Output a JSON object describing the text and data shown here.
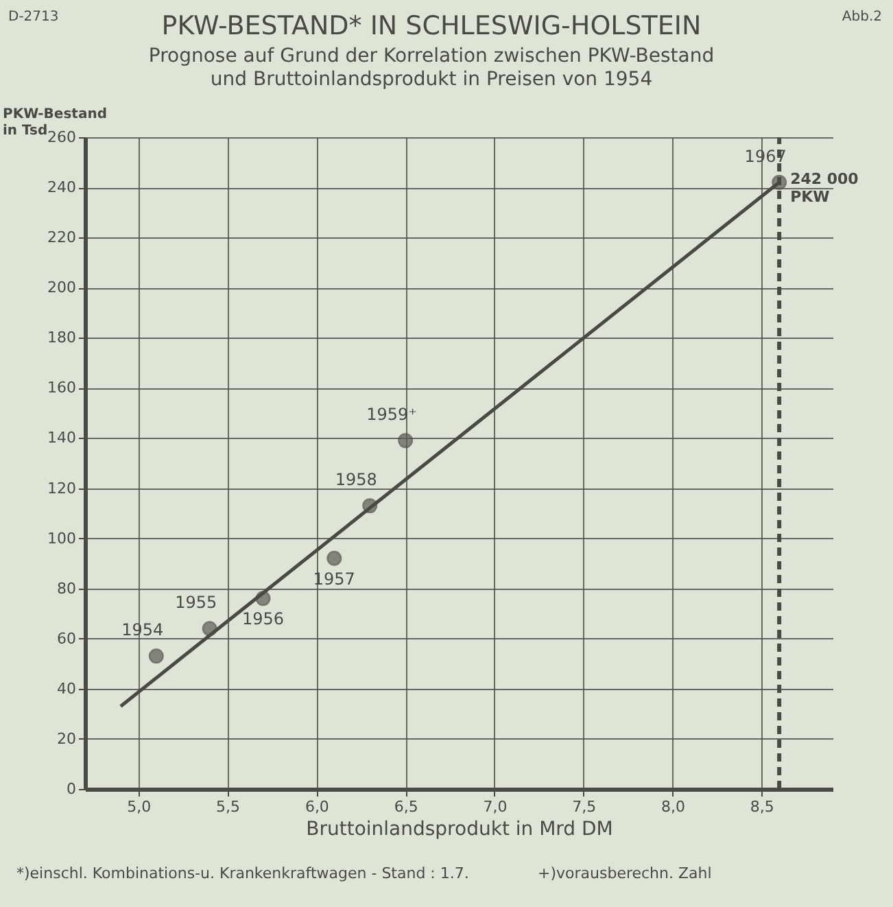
{
  "chart_data": {
    "type": "scatter",
    "title": "PKW-BESTAND* IN SCHLESWIG-HOLSTEIN",
    "subtitle": "Prognose auf Grund der Korrelation zwischen PKW-Bestand und Bruttoinlandsprodukt in Preisen von 1954",
    "xlabel": "Bruttoinlandsprodukt in Mrd DM",
    "ylabel": "PKW-Bestand in Tsd",
    "x": [
      5.1,
      5.4,
      5.7,
      6.1,
      6.3,
      6.5,
      8.6
    ],
    "series": [
      {
        "color": "#5d5d55",
        "values": [
          53,
          64,
          76,
          92,
          113,
          139,
          242
        ]
      },
      {
        "type": "line",
        "color": "#4a4a44",
        "marker": "none",
        "x": [
          4.9,
          8.6
        ],
        "values": [
          33,
          242
        ]
      }
    ],
    "xlim": [
      4.7,
      8.9
    ],
    "xticks": [
      {
        "value": 5.0,
        "label": "5,0"
      },
      {
        "value": 5.5,
        "label": "5,5"
      },
      {
        "value": 6.0,
        "label": "6,0"
      },
      {
        "value": 6.5,
        "label": "6,5"
      },
      {
        "value": 7.0,
        "label": "7,0"
      },
      {
        "value": 7.5,
        "label": "7,5"
      },
      {
        "value": 8.0,
        "label": "8,0"
      },
      {
        "value": 8.5,
        "label": "8,5"
      }
    ],
    "ylim": [
      0,
      260
    ],
    "yticks": [
      0,
      20,
      40,
      60,
      80,
      100,
      120,
      140,
      160,
      180,
      200,
      220,
      240,
      260
    ],
    "grid": true,
    "marker": "circle",
    "ref_lines": [
      {
        "axis": "x",
        "value": 8.6,
        "color": "#4a4a44",
        "line_style": "dashed"
      }
    ],
    "annotations": [
      "D-2713",
      "Abb.2",
      "*)einschl. Kombinations-u. Krankenkraftwagen - Stand : 1.7.",
      "+)vorausberechn. Zahl",
      {
        "text": "1954",
        "x": 5.1,
        "y": 53
      },
      {
        "text": "1955",
        "x": 5.4,
        "y": 64
      },
      {
        "text": "1956",
        "x": 5.7,
        "y": 76
      },
      {
        "text": "1957",
        "x": 6.1,
        "y": 92
      },
      {
        "text": "1958",
        "x": 6.3,
        "y": 113
      },
      {
        "text": "1959⁺",
        "x": 6.5,
        "y": 139
      },
      {
        "text": "1967",
        "x": 8.6,
        "y": 242
      },
      {
        "text": "242 000 PKW",
        "x": 8.6,
        "y": 242
      }
    ]
  }
}
